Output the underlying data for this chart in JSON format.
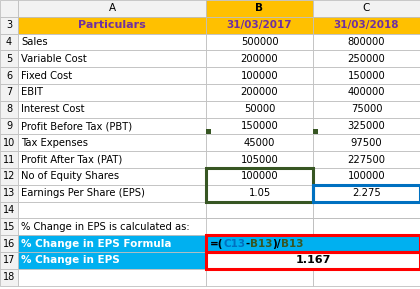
{
  "col_headers": [
    "A",
    "B",
    "C"
  ],
  "header_row": [
    "Particulars",
    "31/03/2017",
    "31/03/2018"
  ],
  "data_rows": [
    [
      "Sales",
      "500000",
      "800000"
    ],
    [
      "Variable Cost",
      "200000",
      "250000"
    ],
    [
      "Fixed Cost",
      "100000",
      "150000"
    ],
    [
      "EBIT",
      "200000",
      "400000"
    ],
    [
      "Interest Cost",
      "50000",
      "75000"
    ],
    [
      "Profit Before Tax (PBT)",
      "150000",
      "325000"
    ],
    [
      "Tax Expenses",
      "45000",
      "97500"
    ],
    [
      "Profit After Tax (PAT)",
      "105000",
      "227500"
    ],
    [
      "No of Equity Shares",
      "100000",
      "100000"
    ],
    [
      "Earnings Per Share (EPS)",
      "1.05",
      "2.275"
    ]
  ],
  "formula_label": "% Change in EPS Formula",
  "formula_value_parts": [
    {
      "text": "=(",
      "color": "#000000"
    },
    {
      "text": "C13",
      "color": "#0070C0"
    },
    {
      "text": "-",
      "color": "#000000"
    },
    {
      "text": "B13",
      "color": "#375623"
    },
    {
      "text": ")/",
      "color": "#000000"
    },
    {
      "text": "B13",
      "color": "#375623"
    }
  ],
  "result_label": "% Change in EPS",
  "result_value": "1.167",
  "note_row": "% Change in EPS is calculated as:",
  "header_bg": "#FFC000",
  "header_text": "#7030A0",
  "cyan_bg": "#00B0F0",
  "white": "#FFFFFF",
  "black": "#000000",
  "light_gray": "#E8E8E8",
  "grid_color": "#BFBFBF",
  "row_num_bg": "#F2F2F2",
  "col_header_bg": "#F2F2F2",
  "red_border": "#FF0000",
  "green_border": "#375623",
  "blue_border": "#0070C0",
  "data_text": "#595959",
  "fig_w": 4.2,
  "fig_h": 2.89,
  "dpi": 100
}
